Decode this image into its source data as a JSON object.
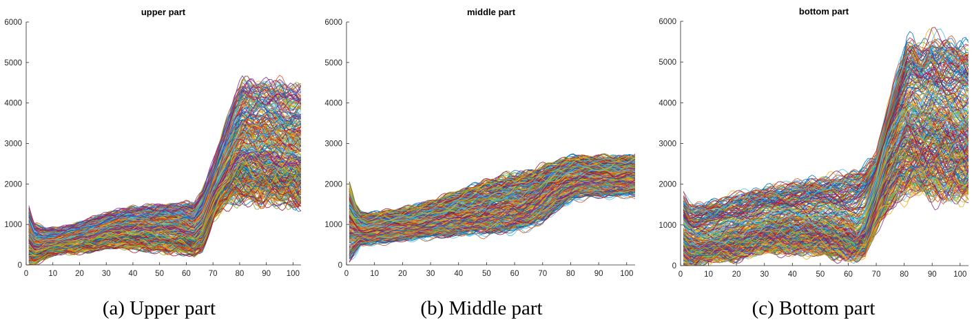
{
  "colors": [
    "#0072BD",
    "#D95319",
    "#EDB120",
    "#7E2F8E",
    "#77AC30",
    "#4DBEEE",
    "#A2142F"
  ],
  "chart_data": [
    {
      "type": "line",
      "title": "upper part",
      "caption": "(a) Upper part",
      "xlabel": "",
      "ylabel": "",
      "xlim": [
        0,
        103
      ],
      "ylim": [
        0,
        6000
      ],
      "xticks": [
        0,
        10,
        20,
        30,
        40,
        50,
        60,
        70,
        80,
        90,
        100
      ],
      "yticks": [
        0,
        1000,
        2000,
        3000,
        4000,
        5000,
        6000
      ],
      "grid": false,
      "series_count": 320,
      "envelope": {
        "x": [
          1,
          3,
          5,
          8,
          12,
          18,
          25,
          32,
          40,
          50,
          58,
          63,
          66,
          70,
          74,
          78,
          81,
          83,
          86,
          90,
          95,
          100,
          103
        ],
        "low": [
          0,
          0,
          100,
          200,
          300,
          300,
          350,
          450,
          400,
          350,
          300,
          250,
          400,
          1100,
          1500,
          1600,
          1650,
          1650,
          1600,
          1600,
          1550,
          1550,
          1550
        ],
        "high": [
          1400,
          1000,
          950,
          900,
          900,
          1000,
          1150,
          1300,
          1400,
          1450,
          1500,
          1500,
          1800,
          2500,
          3300,
          4100,
          4450,
          4500,
          4450,
          4500,
          4450,
          4350,
          4350
        ],
        "median": [
          600,
          450,
          450,
          500,
          550,
          650,
          750,
          900,
          950,
          950,
          900,
          800,
          1000,
          1700,
          2200,
          2600,
          2800,
          2800,
          2700,
          2700,
          2650,
          2600,
          2600
        ]
      }
    },
    {
      "type": "line",
      "title": "middle part",
      "caption": "(b) Middle part",
      "xlabel": "",
      "ylabel": "",
      "xlim": [
        0,
        103
      ],
      "ylim": [
        0,
        6000
      ],
      "xticks": [
        0,
        10,
        20,
        30,
        40,
        50,
        60,
        70,
        80,
        90,
        100
      ],
      "yticks": [
        0,
        1000,
        2000,
        3000,
        4000,
        5000,
        6000
      ],
      "grid": false,
      "series_count": 320,
      "envelope": {
        "x": [
          1,
          3,
          5,
          8,
          12,
          18,
          25,
          32,
          40,
          50,
          58,
          63,
          66,
          70,
          74,
          78,
          81,
          83,
          86,
          90,
          95,
          100,
          103
        ],
        "low": [
          150,
          300,
          500,
          500,
          550,
          600,
          650,
          700,
          750,
          800,
          850,
          900,
          950,
          1100,
          1300,
          1500,
          1600,
          1650,
          1700,
          1700,
          1700,
          1700,
          1700
        ],
        "high": [
          1900,
          1500,
          1300,
          1250,
          1300,
          1350,
          1450,
          1600,
          1800,
          2050,
          2200,
          2250,
          2300,
          2400,
          2500,
          2600,
          2650,
          2650,
          2650,
          2650,
          2650,
          2650,
          2700
        ],
        "median": [
          1000,
          900,
          850,
          850,
          900,
          950,
          1000,
          1100,
          1200,
          1300,
          1400,
          1450,
          1550,
          1750,
          1950,
          2100,
          2150,
          2200,
          2200,
          2200,
          2200,
          2250,
          2250
        ]
      }
    },
    {
      "type": "line",
      "title": "bottom part",
      "caption": "(c) Bottom part",
      "xlabel": "",
      "ylabel": "",
      "xlim": [
        0,
        103
      ],
      "ylim": [
        0,
        6000
      ],
      "xticks": [
        0,
        10,
        20,
        30,
        40,
        50,
        60,
        70,
        80,
        90,
        100
      ],
      "yticks": [
        0,
        1000,
        2000,
        3000,
        4000,
        5000,
        6000
      ],
      "grid": false,
      "series_count": 320,
      "envelope": {
        "x": [
          1,
          3,
          5,
          8,
          12,
          18,
          25,
          32,
          40,
          50,
          58,
          63,
          66,
          70,
          74,
          78,
          81,
          83,
          86,
          90,
          95,
          100,
          103
        ],
        "low": [
          0,
          0,
          0,
          100,
          150,
          150,
          300,
          350,
          350,
          300,
          250,
          200,
          300,
          900,
          1400,
          1700,
          1800,
          1850,
          1800,
          1800,
          1750,
          1700,
          1700
        ],
        "high": [
          1700,
          1500,
          1450,
          1500,
          1550,
          1700,
          1800,
          1900,
          2000,
          2100,
          2200,
          2300,
          2400,
          2700,
          3800,
          4800,
          5400,
          5450,
          5300,
          5550,
          5450,
          5350,
          5300
        ],
        "median": [
          700,
          550,
          500,
          500,
          550,
          650,
          800,
          950,
          1000,
          950,
          850,
          700,
          900,
          1800,
          2700,
          3200,
          3400,
          3450,
          3350,
          3400,
          3350,
          3300,
          3300
        ]
      }
    }
  ]
}
